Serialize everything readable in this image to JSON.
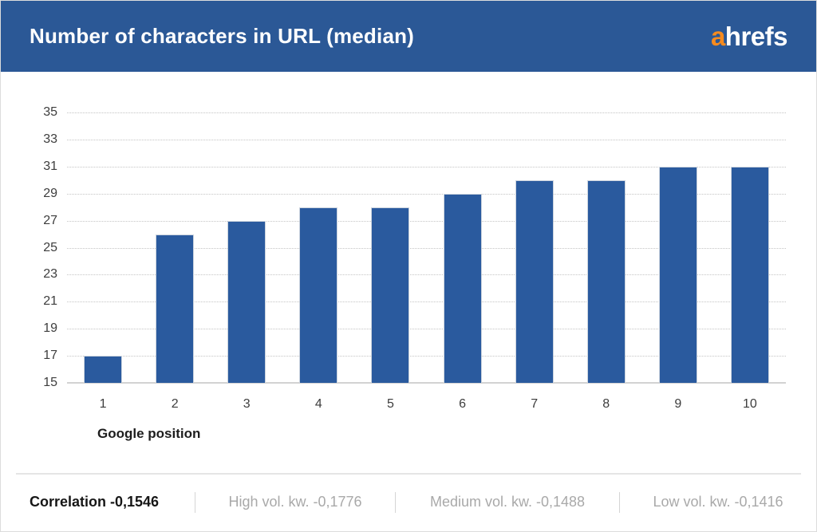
{
  "header": {
    "title": "Number of characters in URL (median)",
    "logo_accent": "a",
    "logo_rest": "hrefs"
  },
  "chart_data": {
    "type": "bar",
    "title": "Number of characters in URL (median)",
    "categories": [
      "1",
      "2",
      "3",
      "4",
      "5",
      "6",
      "7",
      "8",
      "9",
      "10"
    ],
    "values": [
      17,
      26,
      27,
      28,
      28,
      29,
      30,
      30,
      31,
      31
    ],
    "xlabel": "Google position",
    "ylabel": "",
    "ylim": [
      15,
      35
    ],
    "yticks": [
      35,
      33,
      31,
      29,
      27,
      25,
      23,
      21,
      19,
      17,
      15
    ],
    "grid": "horizontal-dotted",
    "legend": "none",
    "bar_color": "#2a5a9e"
  },
  "footer": {
    "items": [
      {
        "text": "Correlation -0,1546"
      },
      {
        "text": "High vol. kw. -0,1776"
      },
      {
        "text": "Medium vol. kw. -0,1488"
      },
      {
        "text": "Low vol. kw. -0,1416"
      }
    ]
  },
  "colors": {
    "header_bg": "#2b5896",
    "bar": "#2a5a9e",
    "logo_accent": "#f68b1f",
    "gridline": "#c4c4c4",
    "footer_muted": "#a9a9a9"
  }
}
